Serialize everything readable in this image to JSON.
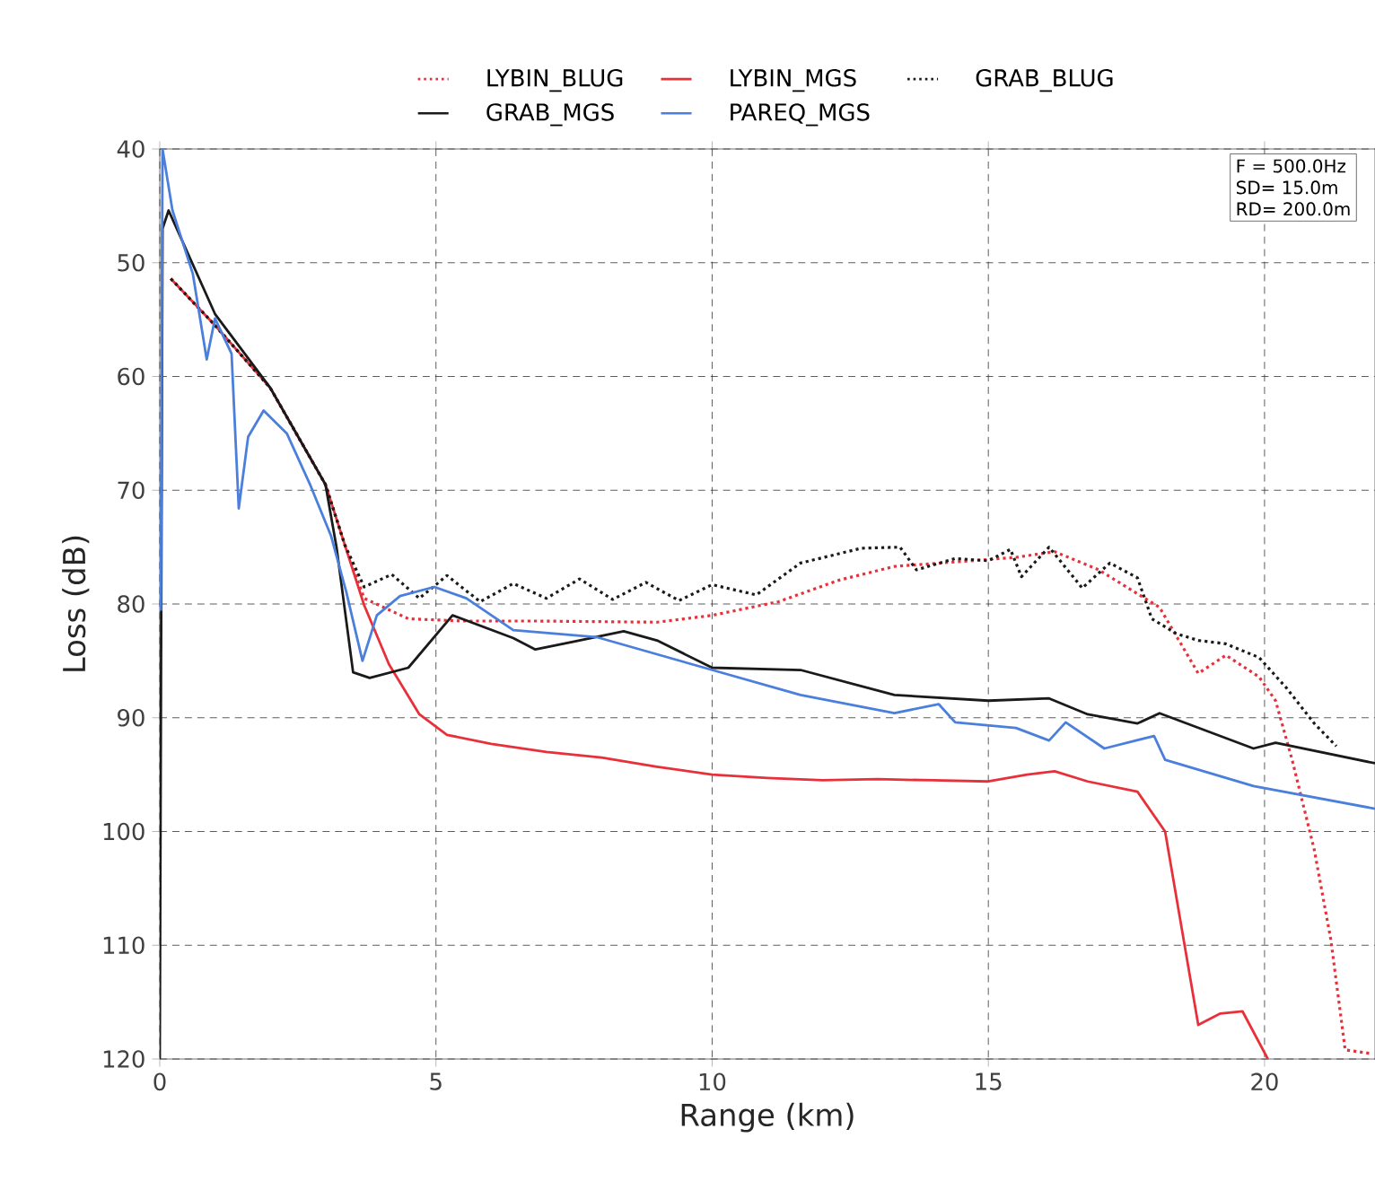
{
  "chart_data": {
    "type": "line",
    "xlabel": "Range (km)",
    "ylabel": "Loss (dB)",
    "xlim": [
      0,
      22
    ],
    "xticks": [
      0,
      5,
      10,
      15,
      20
    ],
    "ylim": [
      120,
      40
    ],
    "yticks": [
      40,
      50,
      60,
      70,
      80,
      90,
      100,
      110,
      120
    ],
    "grid": true,
    "legend": "top",
    "marker": "none",
    "annotations": [
      "F =   500.0Hz",
      "SD=   15.0m",
      "RD=   200.0m"
    ],
    "series": [
      {
        "name": "LYBIN_BLUG",
        "color": "#e8303a",
        "line_style": "dotted",
        "x": [
          0.2,
          1,
          2,
          3,
          3.35,
          3.7,
          4.5,
          5.5,
          6.85,
          9.0,
          10,
          11.2,
          12.3,
          13.3,
          14.4,
          15.5,
          16.2,
          17,
          18.1,
          18.8,
          19.3,
          19.9,
          20.2,
          20.5,
          20.9,
          21.2,
          21.46,
          21.9
        ],
        "values": [
          51.4,
          55.5,
          61,
          69.5,
          74.8,
          79.5,
          81.3,
          81.5,
          81.5,
          81.6,
          81.0,
          79.8,
          77.9,
          76.7,
          76.3,
          75.9,
          75.4,
          77,
          80.3,
          86.1,
          84.5,
          86.4,
          88.5,
          93.7,
          101.6,
          109.5,
          119.2,
          119.5
        ]
      },
      {
        "name": "LYBIN_MGS",
        "color": "#e8303a",
        "line_style": "solid",
        "x": [
          0.2,
          1,
          2,
          3,
          3.35,
          3.7,
          4.15,
          4.7,
          5.2,
          6,
          7,
          8,
          9,
          10,
          11,
          12,
          13,
          14,
          15,
          15.7,
          16.2,
          16.8,
          17.7,
          18.2,
          18.8,
          19.2,
          19.6,
          20.06
        ],
        "values": [
          51.4,
          55.5,
          61,
          69.5,
          74.8,
          80.1,
          85.3,
          89.7,
          91.5,
          92.3,
          93,
          93.5,
          94.3,
          95,
          95.3,
          95.5,
          95.4,
          95.5,
          95.6,
          95,
          94.7,
          95.6,
          96.5,
          100,
          117,
          116,
          115.8,
          120
        ]
      },
      {
        "name": "GRAB_BLUG",
        "color": "#1a1a1a",
        "line_style": "dotted",
        "x": [
          0.2,
          1,
          2,
          3,
          3.35,
          3.7,
          4.2,
          4.7,
          5.2,
          5.8,
          6.4,
          7.0,
          7.6,
          8.2,
          8.8,
          9.4,
          10,
          10.8,
          11.6,
          12.7,
          13.4,
          13.7,
          14.4,
          15,
          15.4,
          15.6,
          16.1,
          16.7,
          17.2,
          17.7,
          17.96,
          18.4,
          18.8,
          19.3,
          19.9,
          20.4,
          20.9,
          21.3
        ],
        "values": [
          51.4,
          55.5,
          61,
          69.5,
          74.8,
          78.5,
          77.4,
          79.5,
          77.5,
          79.8,
          78.2,
          79.5,
          77.8,
          79.6,
          78.1,
          79.7,
          78.3,
          79.2,
          76.4,
          75.1,
          75,
          77,
          76,
          76.2,
          75.2,
          77.6,
          75,
          78.6,
          76.4,
          77.7,
          81.3,
          82.6,
          83.2,
          83.5,
          84.7,
          87.4,
          90.5,
          92.5
        ]
      },
      {
        "name": "GRAB_MGS",
        "color": "#1a1a1a",
        "line_style": "solid",
        "x": [
          0.0,
          0.05,
          0.16,
          1,
          2,
          3,
          3.2,
          3.5,
          3.8,
          4.5,
          5.3,
          6.4,
          6.8,
          7.5,
          8.4,
          9.0,
          10,
          11.6,
          13.3,
          15,
          16.1,
          16.8,
          17.7,
          18.1,
          19.8,
          20.2,
          22
        ],
        "values": [
          120,
          47,
          45.4,
          54.5,
          61,
          69.5,
          75,
          86,
          86.5,
          85.6,
          81,
          83.0,
          84.0,
          83.3,
          82.4,
          83.2,
          85.6,
          85.8,
          88.0,
          88.5,
          88.3,
          89.7,
          90.5,
          89.6,
          92.7,
          92.2,
          94
        ]
      },
      {
        "name": "PAREQ_MGS",
        "color": "#4a7fdc",
        "line_style": "solid",
        "x": [
          0.02,
          0.05,
          0.23,
          0.6,
          0.85,
          1.0,
          1.3,
          1.43,
          1.6,
          1.88,
          2.3,
          2.73,
          3.1,
          3.38,
          3.67,
          3.93,
          4.35,
          4.97,
          5.55,
          6.4,
          7.9,
          10,
          11.6,
          13.3,
          14.1,
          14.4,
          15.5,
          16.1,
          16.4,
          17.1,
          18.0,
          18.2,
          19.8,
          22
        ],
        "values": [
          80.6,
          40,
          45.4,
          51,
          58.5,
          54.9,
          58,
          71.6,
          65.3,
          63,
          65,
          69.6,
          74,
          79,
          85,
          81,
          79.3,
          78.5,
          79.5,
          82.3,
          82.9,
          85.8,
          88.0,
          89.6,
          88.8,
          90.4,
          90.9,
          92.0,
          90.4,
          92.7,
          91.6,
          93.7,
          96.0,
          98
        ]
      }
    ]
  }
}
